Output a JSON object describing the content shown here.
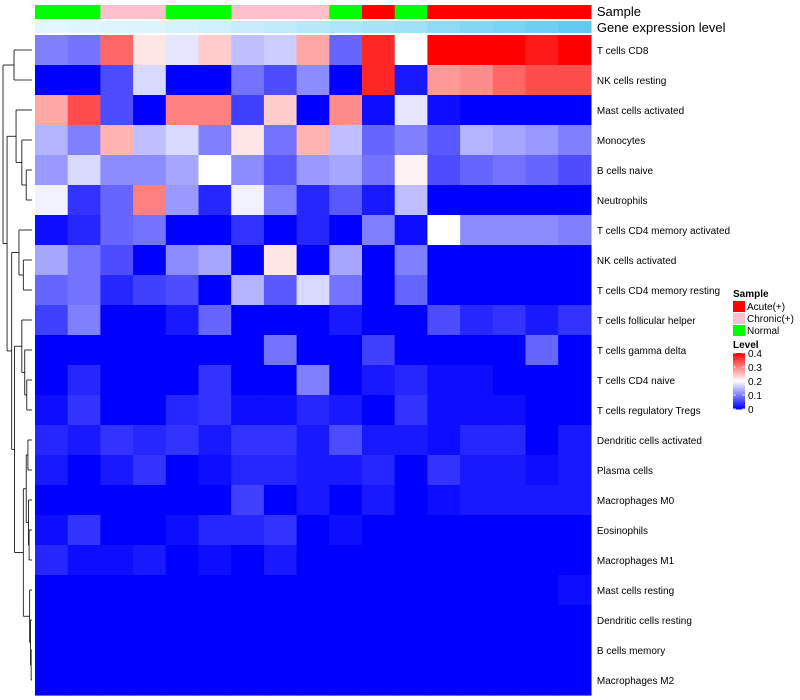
{
  "chart_data": {
    "type": "heatmap",
    "title": "",
    "annotation_tracks": [
      {
        "name": "Sample",
        "values": [
          "Normal",
          "Normal",
          "Chronic(+)",
          "Chronic(+)",
          "Normal",
          "Normal",
          "Chronic(+)",
          "Chronic(+)",
          "Chronic(+)",
          "Normal",
          "Acute(+)",
          "Normal",
          "Acute(+)",
          "Acute(+)",
          "Acute(+)",
          "Acute(+)",
          "Acute(+)"
        ]
      },
      {
        "name": "Gene expression level",
        "values": [
          0.02,
          0.04,
          0.06,
          0.08,
          0.12,
          0.16,
          0.22,
          0.28,
          0.34,
          0.4,
          0.46,
          0.5,
          0.62,
          0.7,
          0.78,
          0.86,
          0.94
        ]
      }
    ],
    "rows": [
      "T cells CD8",
      "NK cells resting",
      "Mast cells activated",
      "Monocytes",
      "B cells naive",
      "Neutrophils",
      "T cells CD4 memory activated",
      "NK cells activated",
      "T cells CD4 memory resting",
      "T cells follicular helper",
      "T cells gamma delta",
      "T cells CD4 naive",
      "T cells regulatory  Tregs",
      "Dendritic cells activated",
      "Plasma cells",
      "Macrophages M0",
      "Eosinophils",
      "Macrophages M1",
      "Mast cells resting",
      "Dendritic cells resting",
      "B cells memory",
      "Macrophages M2"
    ],
    "values": [
      [
        0.1,
        0.09,
        0.32,
        0.22,
        0.18,
        0.24,
        0.15,
        0.16,
        0.27,
        0.08,
        0.37,
        0.2,
        0.4,
        0.4,
        0.4,
        0.38,
        0.4
      ],
      [
        0.0,
        0.0,
        0.06,
        0.17,
        0.0,
        0.0,
        0.09,
        0.06,
        0.11,
        0.0,
        0.37,
        0.02,
        0.28,
        0.29,
        0.32,
        0.34,
        0.34
      ],
      [
        0.27,
        0.34,
        0.06,
        0.0,
        0.3,
        0.3,
        0.05,
        0.24,
        0.0,
        0.29,
        0.01,
        0.18,
        0.01,
        0.0,
        0.0,
        0.0,
        0.0
      ],
      [
        0.14,
        0.1,
        0.26,
        0.15,
        0.17,
        0.1,
        0.22,
        0.09,
        0.26,
        0.15,
        0.08,
        0.1,
        0.07,
        0.14,
        0.13,
        0.12,
        0.1
      ],
      [
        0.12,
        0.17,
        0.11,
        0.11,
        0.13,
        0.2,
        0.11,
        0.07,
        0.12,
        0.13,
        0.09,
        0.21,
        0.06,
        0.08,
        0.09,
        0.08,
        0.06
      ],
      [
        0.19,
        0.04,
        0.08,
        0.3,
        0.12,
        0.03,
        0.19,
        0.1,
        0.03,
        0.07,
        0.02,
        0.15,
        0.0,
        0.0,
        0.0,
        0.0,
        0.0
      ],
      [
        0.01,
        0.03,
        0.08,
        0.09,
        0.0,
        0.0,
        0.04,
        0.0,
        0.03,
        0.0,
        0.1,
        0.01,
        0.2,
        0.11,
        0.11,
        0.11,
        0.1
      ],
      [
        0.13,
        0.09,
        0.06,
        0.0,
        0.11,
        0.13,
        0.0,
        0.22,
        0.0,
        0.13,
        0.0,
        0.1,
        0.0,
        0.0,
        0.0,
        0.0,
        0.0
      ],
      [
        0.08,
        0.09,
        0.03,
        0.05,
        0.06,
        0.0,
        0.14,
        0.07,
        0.17,
        0.09,
        0.0,
        0.08,
        0.0,
        0.0,
        0.0,
        0.0,
        0.0
      ],
      [
        0.05,
        0.1,
        0.0,
        0.0,
        0.02,
        0.08,
        0.0,
        0.0,
        0.0,
        0.02,
        0.0,
        0.0,
        0.06,
        0.03,
        0.04,
        0.02,
        0.04
      ],
      [
        0.0,
        0.0,
        0.0,
        0.0,
        0.0,
        0.0,
        0.0,
        0.09,
        0.0,
        0.0,
        0.05,
        0.0,
        0.0,
        0.0,
        0.0,
        0.08,
        0.0
      ],
      [
        0.0,
        0.03,
        0.0,
        0.0,
        0.0,
        0.04,
        0.0,
        0.0,
        0.1,
        0.0,
        0.02,
        0.03,
        0.01,
        0.01,
        0.0,
        0.0,
        0.0
      ],
      [
        0.01,
        0.04,
        0.0,
        0.0,
        0.03,
        0.04,
        0.01,
        0.01,
        0.03,
        0.02,
        0.0,
        0.04,
        0.01,
        0.01,
        0.01,
        0.0,
        0.0
      ],
      [
        0.03,
        0.02,
        0.04,
        0.03,
        0.04,
        0.02,
        0.04,
        0.04,
        0.02,
        0.06,
        0.02,
        0.02,
        0.01,
        0.03,
        0.03,
        0.0,
        0.02
      ],
      [
        0.02,
        0.0,
        0.02,
        0.04,
        0.0,
        0.01,
        0.03,
        0.03,
        0.02,
        0.02,
        0.03,
        0.0,
        0.04,
        0.02,
        0.02,
        0.01,
        0.02
      ],
      [
        0.0,
        0.0,
        0.0,
        0.0,
        0.0,
        0.0,
        0.05,
        0.0,
        0.02,
        0.0,
        0.02,
        0.0,
        0.01,
        0.02,
        0.02,
        0.02,
        0.02
      ],
      [
        0.01,
        0.04,
        0.0,
        0.0,
        0.01,
        0.03,
        0.03,
        0.04,
        0.0,
        0.01,
        0.0,
        0.0,
        0.0,
        0.0,
        0.0,
        0.0,
        0.0
      ],
      [
        0.03,
        0.01,
        0.01,
        0.02,
        0.0,
        0.01,
        0.0,
        0.02,
        0.0,
        0.0,
        0.0,
        0.0,
        0.0,
        0.0,
        0.0,
        0.0,
        0.0
      ],
      [
        0.0,
        0.0,
        0.0,
        0.0,
        0.0,
        0.0,
        0.0,
        0.0,
        0.0,
        0.0,
        0.0,
        0.0,
        0.0,
        0.0,
        0.0,
        0.0,
        0.01
      ],
      [
        0.0,
        0.0,
        0.0,
        0.0,
        0.0,
        0.0,
        0.0,
        0.0,
        0.0,
        0.0,
        0.0,
        0.0,
        0.0,
        0.0,
        0.0,
        0.0,
        0.0
      ],
      [
        0.0,
        0.0,
        0.0,
        0.0,
        0.0,
        0.0,
        0.0,
        0.0,
        0.0,
        0.0,
        0.0,
        0.0,
        0.0,
        0.0,
        0.0,
        0.0,
        0.0
      ],
      [
        0.0,
        0.0,
        0.0,
        0.0,
        0.0,
        0.0,
        0.0,
        0.0,
        0.0,
        0.0,
        0.0,
        0.0,
        0.0,
        0.0,
        0.0,
        0.0,
        0.0
      ]
    ],
    "color_scale": {
      "title": "Level",
      "range": [
        0,
        0.4
      ],
      "ticks": [
        "0.4",
        "0.3",
        "0.2",
        "0.1",
        "0"
      ],
      "colors": [
        "#0000ff",
        "#ffffff",
        "#ff0000"
      ]
    },
    "legend": {
      "title": "Sample",
      "placement": "right",
      "entries": [
        {
          "label": "Acute(+)",
          "color": "#ff0000"
        },
        {
          "label": "Chronic(+)",
          "color": "#ffc0cb"
        },
        {
          "label": "Normal",
          "color": "#00ff00"
        }
      ]
    },
    "expression_track_colors": [
      "#e6f8ff",
      "#5ac8f0"
    ],
    "dendrogram": "left"
  }
}
